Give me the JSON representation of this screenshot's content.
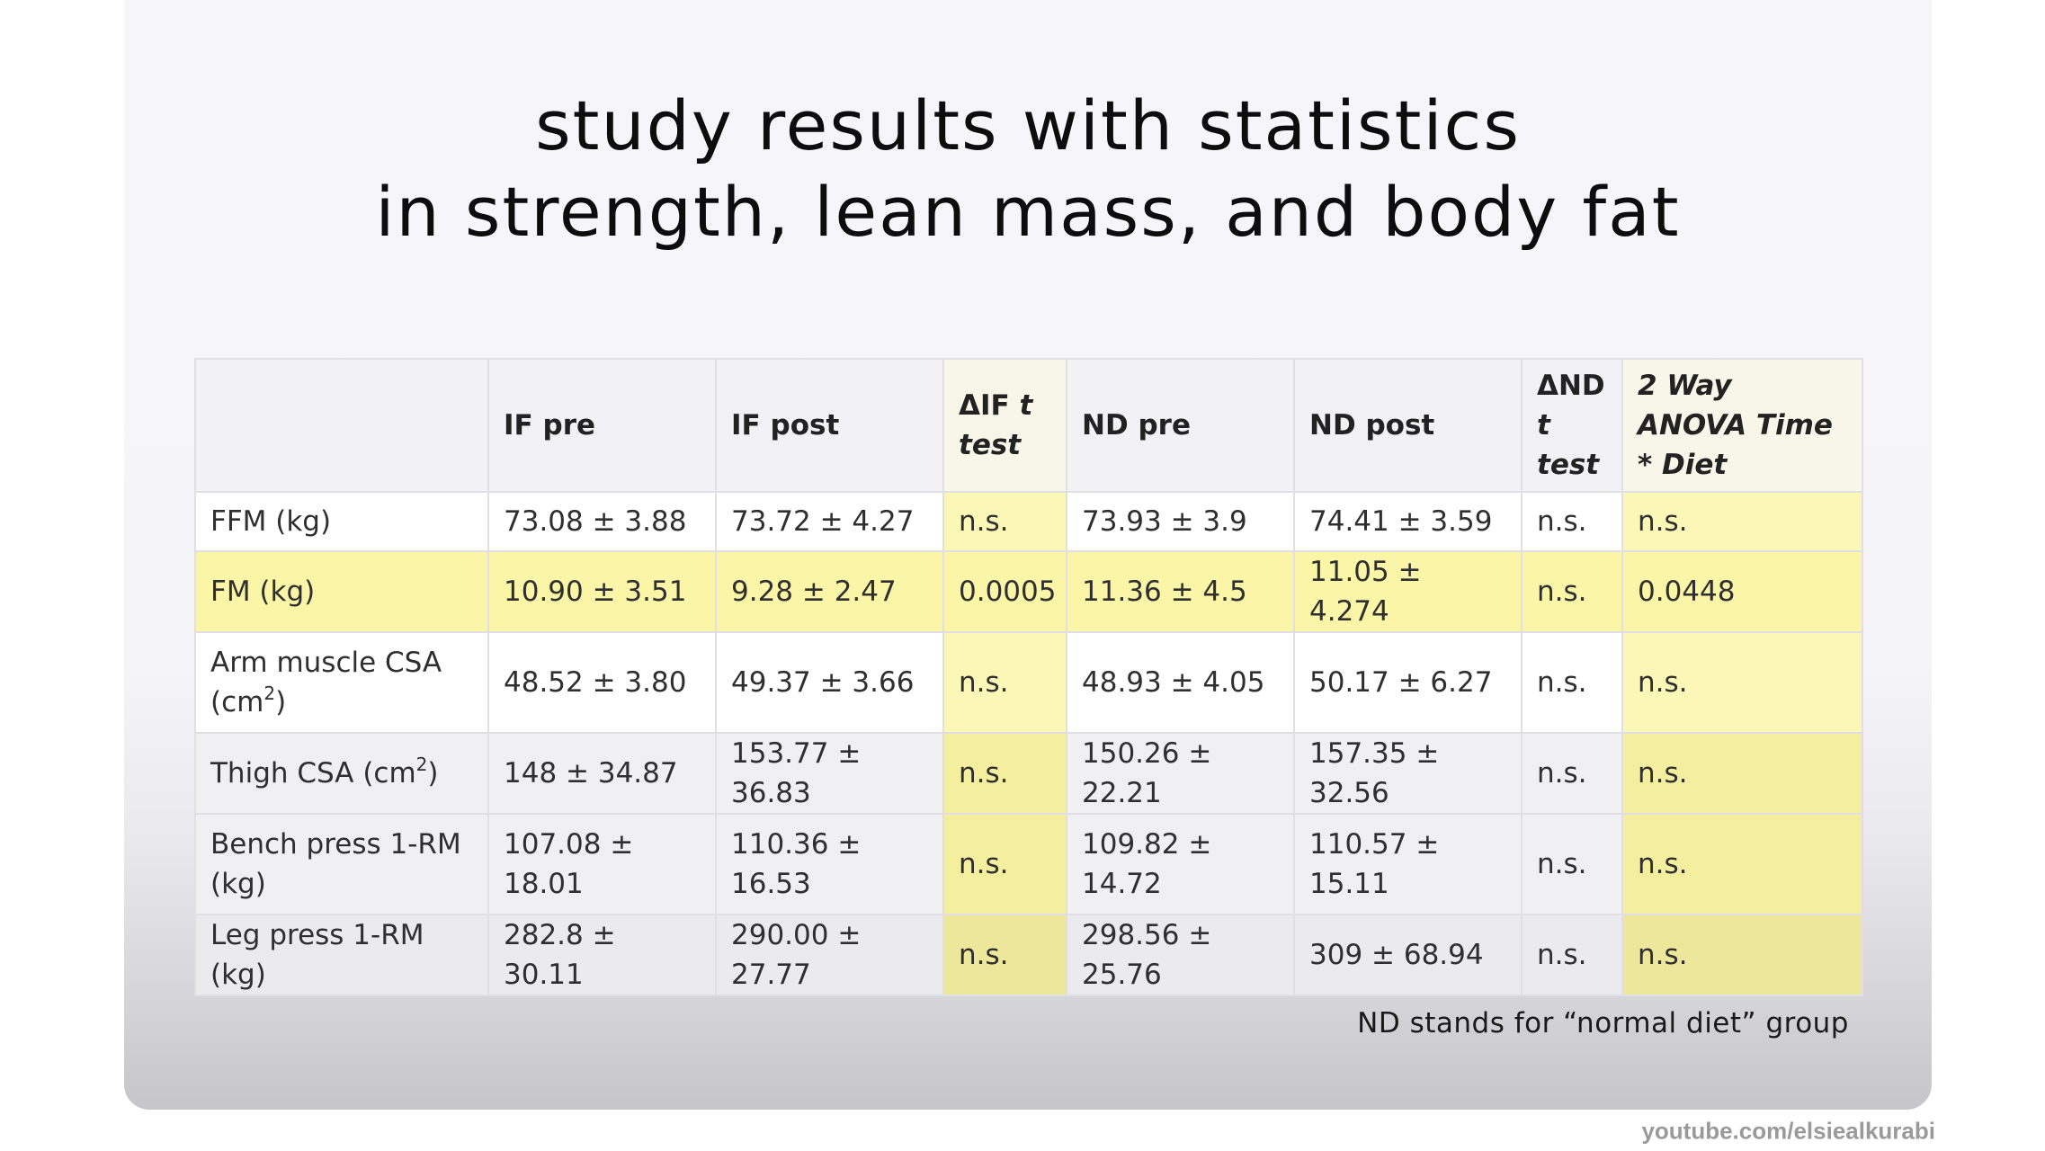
{
  "title": {
    "line1": "study results with statistics",
    "line2": "in strength, lean mass, and body fat"
  },
  "table": {
    "headers": {
      "metric": "",
      "if_pre": "IF pre",
      "if_post": "IF post",
      "delta_if_a": "ΔIF ",
      "delta_if_b": "t",
      "delta_if_c": " test",
      "nd_pre": "ND pre",
      "nd_post": "ND post",
      "delta_nd_a": "ΔND",
      "delta_nd_b": "t",
      "delta_nd_c": "test",
      "anova": "2 Way ANOVA Time * Diet"
    },
    "rows": [
      {
        "metric": "FFM (kg)",
        "if_pre": "73.08 ± 3.88",
        "if_post": "73.72 ± 4.27",
        "delta_if": "n.s.",
        "nd_pre": "73.93 ± 3.9",
        "nd_post": "74.41 ± 3.59",
        "delta_nd": "n.s.",
        "anova": "n.s."
      },
      {
        "metric": "FM (kg)",
        "if_pre": "10.90 ± 3.51",
        "if_post": "9.28 ± 2.47",
        "delta_if": "0.0005",
        "nd_pre": "11.36 ± 4.5",
        "nd_post": "11.05 ± 4.274",
        "delta_nd": "n.s.",
        "anova": "0.0448"
      },
      {
        "metric_a": "Arm muscle CSA (cm",
        "metric_sup": "2",
        "metric_b": ")",
        "if_pre": "48.52 ± 3.80",
        "if_post": "49.37 ± 3.66",
        "delta_if": "n.s.",
        "nd_pre": "48.93 ± 4.05",
        "nd_post": "50.17 ± 6.27",
        "delta_nd": "n.s.",
        "anova": "n.s."
      },
      {
        "metric_a": "Thigh CSA (cm",
        "metric_sup": "2",
        "metric_b": ")",
        "if_pre": "148 ± 34.87",
        "if_post": "153.77 ± 36.83",
        "delta_if": "n.s.",
        "nd_pre": "150.26 ± 22.21",
        "nd_post": "157.35 ± 32.56",
        "delta_nd": "n.s.",
        "anova": "n.s."
      },
      {
        "metric": "Bench press 1-RM (kg)",
        "if_pre": "107.08 ± 18.01",
        "if_post": "110.36 ± 16.53",
        "delta_if": "n.s.",
        "nd_pre": "109.82 ± 14.72",
        "nd_post": "110.57 ± 15.11",
        "delta_nd": "n.s.",
        "anova": "n.s."
      },
      {
        "metric": "Leg press 1-RM (kg)",
        "if_pre": "282.8 ± 30.11",
        "if_post": "290.00 ± 27.77",
        "delta_if": "n.s.",
        "nd_pre": "298.56 ± 25.76",
        "nd_post": "309 ± 68.94",
        "delta_nd": "n.s.",
        "anova": "n.s."
      }
    ]
  },
  "footnote": "ND stands for “normal diet” group",
  "watermark": "youtube.com/elsiealkurabi",
  "colors": {
    "highlight": "#fbf6a7",
    "text": "#2f2f2f"
  }
}
